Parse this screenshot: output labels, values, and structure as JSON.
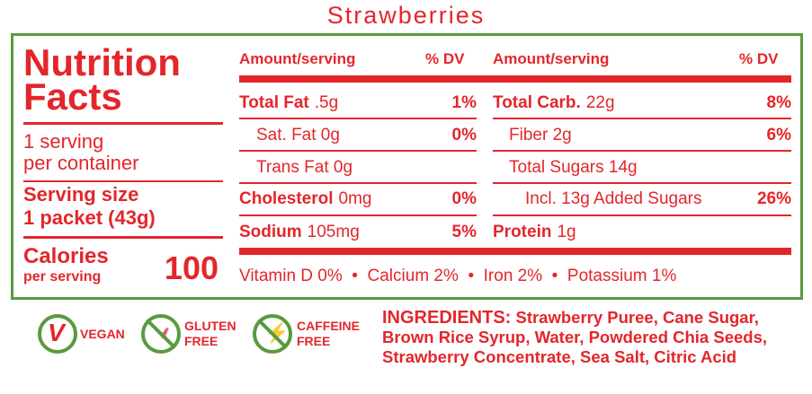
{
  "product_title": "Strawberries",
  "left": {
    "heading_1": "Nutrition",
    "heading_2": "Facts",
    "servings_1": "1 serving",
    "servings_2": "per container",
    "serving_size_1": "Serving size",
    "serving_size_2": "1 packet (43g)",
    "calories_label": "Calories",
    "calories_sub": "per serving",
    "calories_value": "100"
  },
  "headers": {
    "amount": "Amount/serving",
    "dv": "% DV"
  },
  "col1": [
    {
      "name": "Total Fat",
      "amount": ".5g",
      "dv": "1%"
    },
    {
      "name": "Sat. Fat 0g",
      "amount": "",
      "dv": "0%"
    },
    {
      "name": "Trans Fat 0g",
      "amount": "",
      "dv": ""
    },
    {
      "name": "Cholesterol",
      "amount": "0mg",
      "dv": "0%"
    },
    {
      "name": "Sodium",
      "amount": "105mg",
      "dv": "5%"
    }
  ],
  "col2": [
    {
      "name": "Total Carb.",
      "amount": "22g",
      "dv": "8%"
    },
    {
      "name": "Fiber 2g",
      "amount": "",
      "dv": "6%"
    },
    {
      "name": "Total Sugars 14g",
      "amount": "",
      "dv": ""
    },
    {
      "name": "Incl. 13g Added Sugars",
      "amount": "",
      "dv": "26%"
    },
    {
      "name": "Protein",
      "amount": "1g",
      "dv": ""
    }
  ],
  "vitamins": "Vitamin D 0%  •  Calcium 2%  •  Iron 2%  •  Potassium 1%",
  "badges": [
    {
      "icon": "vegan-icon",
      "label_1": "VEGAN",
      "label_2": ""
    },
    {
      "icon": "gluten-free-icon",
      "label_1": "GLUTEN",
      "label_2": "FREE"
    },
    {
      "icon": "caffeine-free-icon",
      "label_1": "CAFFEINE",
      "label_2": "FREE"
    }
  ],
  "ingredients": {
    "label": "INGREDIENTS:",
    "text": "Strawberry Puree, Cane Sugar, Brown Rice Syrup, Water, Powdered Chia Seeds, Strawberry Concentrate, Sea Salt, Citric Acid"
  },
  "colors": {
    "red": "#e3262b",
    "green": "#5a9a3f"
  }
}
